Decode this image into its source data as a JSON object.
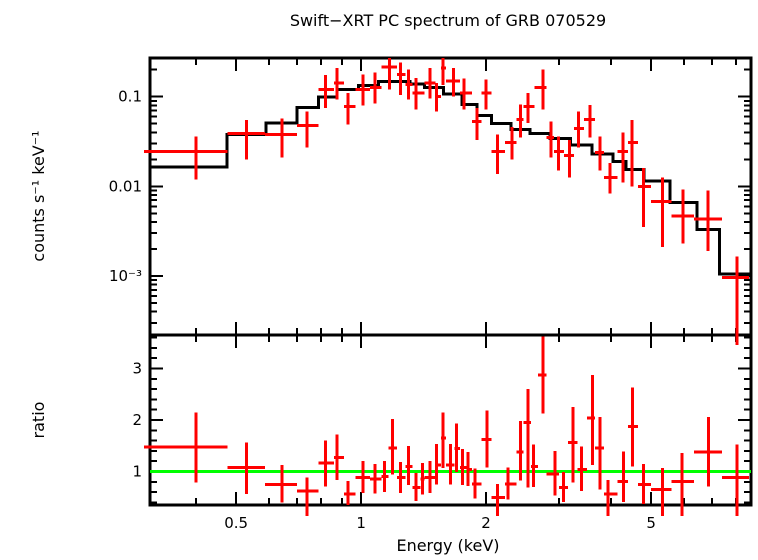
{
  "chart_data": {
    "type": "line",
    "title": "Swift−XRT PC spectrum of GRB 070529",
    "xlabel": "Energy (keV)",
    "x_scale": "log",
    "xlim": [
      0.31,
      8.7
    ],
    "x_ticks": {
      "major": [
        0.5,
        1,
        2,
        5
      ],
      "labels": [
        "0.5",
        "1",
        "2",
        "5"
      ],
      "minor": [
        0.4,
        0.6,
        0.7,
        0.8,
        0.9,
        3,
        4,
        6,
        7,
        8
      ]
    },
    "legend": null,
    "grid": false,
    "colors": {
      "data": "#ff0000",
      "model": "#000000",
      "reference": "#00ff00",
      "frame": "#000000",
      "background": "#ffffff"
    },
    "panels": [
      {
        "name": "spectrum",
        "ylabel": "counts s⁻¹ keV⁻¹",
        "y_scale": "log",
        "ylim": [
          0.00022,
          0.27
        ],
        "y_ticks": {
          "major": [
            0.1,
            0.01,
            0.001
          ],
          "labels": [
            "0.1",
            "0.01",
            "10⁻³"
          ]
        },
        "series": [
          {
            "name": "observed-counts",
            "style": "cross",
            "color": "#ff0000",
            "columns": [
              "E",
              "E_lo",
              "E_hi",
              "rate",
              "err_up",
              "err_dn"
            ],
            "points": [
              [
                0.4,
                0.3,
                0.476,
                0.0245,
                0.0115,
                0.0125
              ],
              [
                0.53,
                0.476,
                0.587,
                0.039,
                0.016,
                0.019
              ],
              [
                0.645,
                0.587,
                0.7,
                0.038,
                0.019,
                0.017
              ],
              [
                0.74,
                0.7,
                0.79,
                0.048,
                0.02,
                0.021
              ],
              [
                0.82,
                0.79,
                0.86,
                0.12,
                0.055,
                0.045
              ],
              [
                0.875,
                0.86,
                0.91,
                0.143,
                0.065,
                0.05
              ],
              [
                0.93,
                0.91,
                0.97,
                0.078,
                0.032,
                0.029
              ],
              [
                1.01,
                0.97,
                1.05,
                0.12,
                0.056,
                0.04
              ],
              [
                1.08,
                1.05,
                1.12,
                0.126,
                0.06,
                0.042
              ],
              [
                1.17,
                1.12,
                1.22,
                0.215,
                0.055,
                0.095
              ],
              [
                1.245,
                1.22,
                1.28,
                0.176,
                0.064,
                0.071
              ],
              [
                1.3,
                1.28,
                1.33,
                0.136,
                0.064,
                0.043
              ],
              [
                1.355,
                1.33,
                1.42,
                0.11,
                0.052,
                0.038
              ],
              [
                1.465,
                1.42,
                1.51,
                0.143,
                0.067,
                0.048
              ],
              [
                1.52,
                1.51,
                1.56,
                0.1,
                0.043,
                0.032
              ],
              [
                1.575,
                1.56,
                1.6,
                0.21,
                0.06,
                0.075
              ],
              [
                1.67,
                1.6,
                1.73,
                0.15,
                0.06,
                0.05
              ],
              [
                1.77,
                1.73,
                1.85,
                0.11,
                0.05,
                0.038
              ],
              [
                1.9,
                1.85,
                1.95,
                0.053,
                0.022,
                0.02
              ],
              [
                2.0,
                1.95,
                2.06,
                0.11,
                0.045,
                0.038
              ],
              [
                2.13,
                2.06,
                2.22,
                0.0245,
                0.0135,
                0.0108
              ],
              [
                2.31,
                2.22,
                2.37,
                0.031,
                0.015,
                0.011
              ],
              [
                2.42,
                2.37,
                2.46,
                0.056,
                0.026,
                0.021
              ],
              [
                2.525,
                2.46,
                2.62,
                0.078,
                0.032,
                0.027
              ],
              [
                2.74,
                2.62,
                2.8,
                0.126,
                0.074,
                0.054
              ],
              [
                2.87,
                2.8,
                2.92,
                0.035,
                0.018,
                0.014
              ],
              [
                2.99,
                2.92,
                3.08,
                0.0245,
                0.0115,
                0.0095
              ],
              [
                3.18,
                3.08,
                3.26,
                0.022,
                0.011,
                0.0095
              ],
              [
                3.34,
                3.26,
                3.44,
                0.044,
                0.024,
                0.017
              ],
              [
                3.56,
                3.44,
                3.66,
                0.056,
                0.025,
                0.021
              ],
              [
                3.76,
                3.66,
                3.85,
                0.024,
                0.012,
                0.009
              ],
              [
                3.98,
                3.85,
                4.15,
                0.0126,
                0.0055,
                0.0043
              ],
              [
                4.28,
                4.15,
                4.4,
                0.0245,
                0.0155,
                0.0135
              ],
              [
                4.5,
                4.4,
                4.65,
                0.031,
                0.024,
                0.021
              ],
              [
                4.79,
                4.65,
                5.0,
                0.01,
                0.006,
                0.0065
              ],
              [
                5.32,
                5.0,
                5.6,
                0.0068,
                0.0058,
                0.0047
              ],
              [
                5.97,
                5.6,
                6.35,
                0.0047,
                0.0045,
                0.0024
              ],
              [
                6.86,
                6.35,
                7.4,
                0.0043,
                0.0047,
                0.0024
              ],
              [
                8.05,
                7.4,
                8.6,
                0.00096,
                0.0007,
                0.0008
              ]
            ]
          },
          {
            "name": "model",
            "style": "steps",
            "color": "#000000",
            "columns": [
              "E_lo",
              "E_hi",
              "rate"
            ],
            "steps": [
              [
                0.31,
                0.475,
                0.0165
              ],
              [
                0.475,
                0.59,
                0.038
              ],
              [
                0.59,
                0.7,
                0.051
              ],
              [
                0.7,
                0.79,
                0.076
              ],
              [
                0.79,
                0.875,
                0.099
              ],
              [
                0.875,
                0.985,
                0.12
              ],
              [
                0.985,
                1.1,
                0.134
              ],
              [
                1.1,
                1.31,
                0.147
              ],
              [
                1.31,
                1.42,
                0.138
              ],
              [
                1.42,
                1.58,
                0.126
              ],
              [
                1.58,
                1.75,
                0.107
              ],
              [
                1.75,
                1.9,
                0.082
              ],
              [
                1.9,
                2.06,
                0.062
              ],
              [
                2.06,
                2.3,
                0.05
              ],
              [
                2.3,
                2.55,
                0.043
              ],
              [
                2.55,
                2.85,
                0.039
              ],
              [
                2.85,
                3.2,
                0.034
              ],
              [
                3.2,
                3.6,
                0.029
              ],
              [
                3.6,
                4.05,
                0.023
              ],
              [
                4.05,
                4.35,
                0.019
              ],
              [
                4.35,
                4.8,
                0.0155
              ],
              [
                4.8,
                5.55,
                0.0115
              ],
              [
                5.55,
                6.45,
                0.0066
              ],
              [
                6.45,
                7.3,
                0.0033
              ],
              [
                7.3,
                8.7,
                0.00105
              ]
            ]
          }
        ]
      },
      {
        "name": "ratio",
        "ylabel": "ratio",
        "y_scale": "linear",
        "ylim": [
          0.35,
          3.65
        ],
        "y_ticks": {
          "major": [
            1,
            2,
            3
          ],
          "labels": [
            "1",
            "2",
            "3"
          ]
        },
        "reference_line": {
          "y": 1,
          "color": "#00ff00"
        },
        "series": [
          {
            "name": "data-to-model-ratio",
            "style": "cross",
            "color": "#ff0000",
            "columns": [
              "E",
              "E_lo",
              "E_hi",
              "ratio",
              "err_up",
              "err_dn"
            ],
            "points": [
              [
                0.4,
                0.3,
                0.476,
                1.48,
                0.67,
                0.69
              ],
              [
                0.53,
                0.476,
                0.587,
                1.08,
                0.48,
                0.52
              ],
              [
                0.645,
                0.587,
                0.7,
                0.75,
                0.38,
                0.35
              ],
              [
                0.74,
                0.7,
                0.79,
                0.62,
                0.26,
                0.29
              ],
              [
                0.82,
                0.79,
                0.86,
                1.17,
                0.43,
                0.46
              ],
              [
                0.875,
                0.86,
                0.91,
                1.27,
                0.45,
                0.43
              ],
              [
                0.93,
                0.91,
                0.97,
                0.56,
                0.26,
                0.21
              ],
              [
                1.01,
                0.97,
                1.05,
                0.88,
                0.32,
                0.3
              ],
              [
                1.08,
                1.05,
                1.12,
                0.85,
                0.3,
                0.28
              ],
              [
                1.14,
                1.12,
                1.165,
                0.9,
                0.3,
                0.3
              ],
              [
                1.19,
                1.165,
                1.22,
                1.46,
                0.56,
                0.52
              ],
              [
                1.245,
                1.22,
                1.28,
                0.88,
                0.3,
                0.3
              ],
              [
                1.3,
                1.28,
                1.33,
                1.1,
                0.4,
                0.36
              ],
              [
                1.355,
                1.33,
                1.39,
                0.69,
                0.28,
                0.26
              ],
              [
                1.405,
                1.39,
                1.42,
                0.85,
                0.32,
                0.3
              ],
              [
                1.465,
                1.42,
                1.51,
                0.88,
                0.32,
                0.3
              ],
              [
                1.52,
                1.51,
                1.56,
                1.13,
                0.4,
                0.38
              ],
              [
                1.575,
                1.56,
                1.6,
                1.65,
                0.5,
                0.58
              ],
              [
                1.64,
                1.6,
                1.68,
                1.13,
                0.4,
                0.38
              ],
              [
                1.7,
                1.68,
                1.73,
                1.45,
                0.48,
                0.46
              ],
              [
                1.755,
                1.73,
                1.8,
                1.08,
                0.36,
                0.34
              ],
              [
                1.81,
                1.8,
                1.85,
                1.04,
                0.34,
                0.32
              ],
              [
                1.88,
                1.85,
                1.95,
                0.76,
                0.3,
                0.28
              ],
              [
                2.01,
                1.95,
                2.06,
                1.62,
                0.56,
                0.54
              ],
              [
                2.13,
                2.06,
                2.22,
                0.5,
                0.26,
                0.24
              ],
              [
                2.26,
                2.22,
                2.37,
                0.76,
                0.32,
                0.3
              ],
              [
                2.42,
                2.37,
                2.46,
                1.38,
                0.6,
                0.55
              ],
              [
                2.525,
                2.46,
                2.57,
                1.95,
                0.65,
                1.26
              ],
              [
                2.6,
                2.57,
                2.67,
                1.1,
                0.42,
                0.4
              ],
              [
                2.74,
                2.67,
                2.8,
                2.87,
                0.75,
                0.74
              ],
              [
                2.93,
                2.8,
                3.0,
                0.95,
                0.45,
                0.42
              ],
              [
                3.07,
                3.0,
                3.15,
                0.69,
                0.3,
                0.28
              ],
              [
                3.24,
                3.15,
                3.32,
                1.56,
                0.69,
                0.77
              ],
              [
                3.4,
                3.32,
                3.5,
                1.04,
                0.45,
                0.42
              ],
              [
                3.61,
                3.5,
                3.66,
                2.04,
                0.83,
                0.91
              ],
              [
                3.76,
                3.66,
                3.85,
                1.46,
                0.6,
                0.81
              ],
              [
                3.93,
                3.85,
                4.15,
                0.56,
                0.28,
                0.25
              ],
              [
                4.29,
                4.15,
                4.4,
                0.81,
                0.58,
                0.4
              ],
              [
                4.51,
                4.4,
                4.65,
                1.87,
                0.76,
                0.77
              ],
              [
                4.79,
                4.65,
                5.0,
                0.75,
                0.4,
                0.38
              ],
              [
                5.32,
                5.0,
                5.6,
                0.65,
                0.42,
                0.38
              ],
              [
                5.94,
                5.6,
                6.35,
                0.81,
                0.55,
                0.5
              ],
              [
                6.87,
                6.35,
                7.4,
                1.38,
                0.68,
                0.67
              ],
              [
                8.05,
                7.4,
                8.6,
                0.88,
                0.64,
                1.2
              ]
            ]
          }
        ]
      }
    ]
  }
}
